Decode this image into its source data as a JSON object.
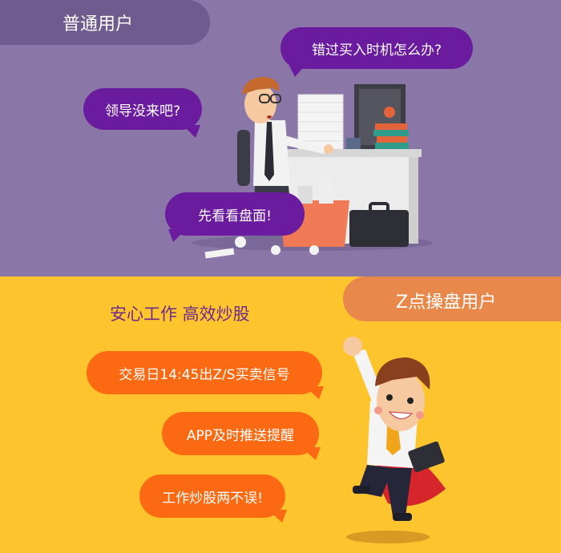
{
  "top_section": {
    "tag": "普通用户",
    "bubbles": [
      {
        "text": "错过买入时机怎么办?"
      },
      {
        "text": "领导没来吧?"
      },
      {
        "text": "先看看盘面!"
      }
    ]
  },
  "bottom_section": {
    "tag": "Z点操盘用户",
    "slogan": "安心工作 高效炒股",
    "bubbles": [
      {
        "text": "交易日14:45出Z/S买卖信号"
      },
      {
        "text": "APP及时推送提醒"
      },
      {
        "text": "工作炒股两不误!"
      }
    ]
  },
  "colors": {
    "top_bg": "#8a77a8",
    "bottom_bg": "#fec42e",
    "purple_bubble": "#6a1b9e",
    "orange_bubble": "#fb6a12",
    "top_tag": "#6f5b8d",
    "bottom_tag": "#e8884b"
  }
}
